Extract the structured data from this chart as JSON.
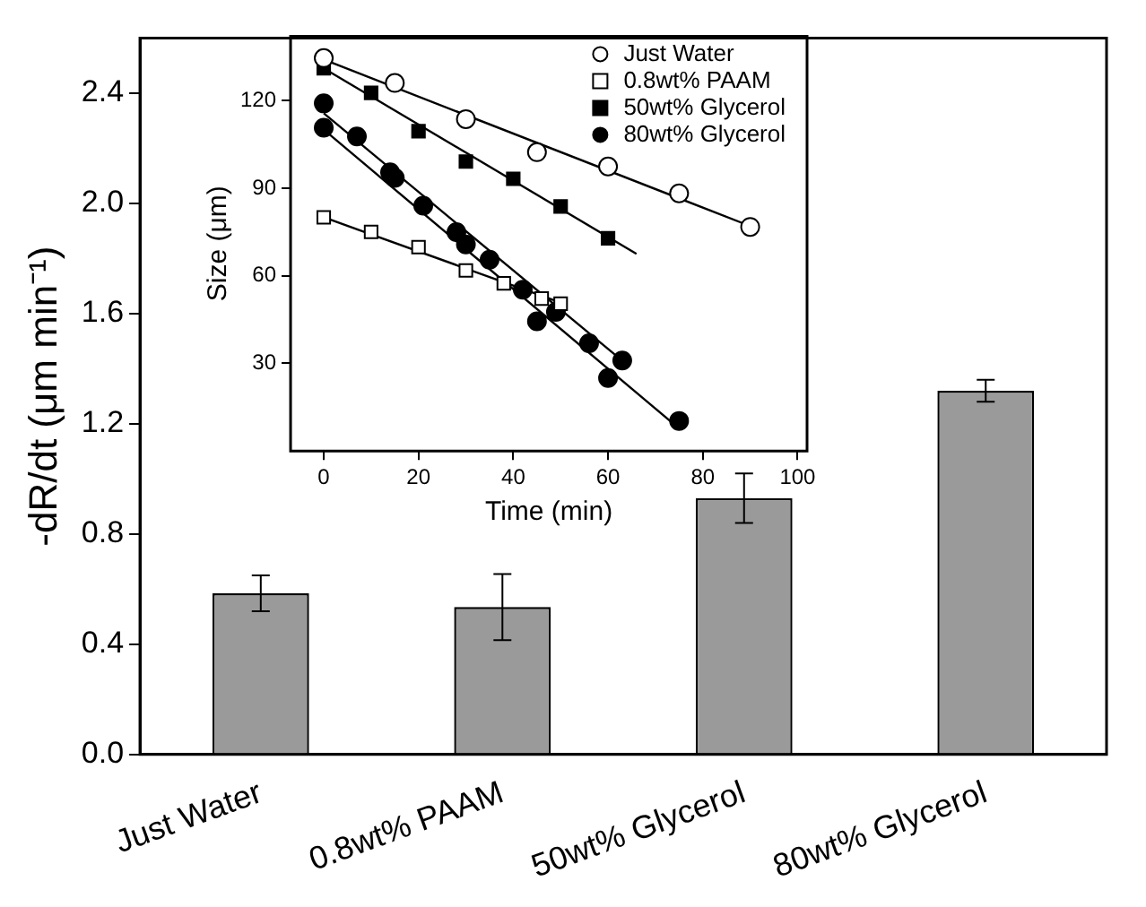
{
  "chart_data": [
    {
      "type": "bar",
      "ylabel": "-dR/dt (μm min⁻¹)",
      "categories": [
        "Just Water",
        "0.8wt% PAAM",
        "50wt% Glycerol",
        "80wt% Glycerol"
      ],
      "color": "#9a9a9a",
      "values": [
        0.585,
        0.535,
        0.93,
        1.32
      ],
      "errors": [
        0.065,
        0.12,
        0.09,
        0.04
      ],
      "ylim": [
        0,
        2.6
      ],
      "yticks": [
        {
          "value": 0,
          "label": "0.0"
        },
        0.4,
        0.8,
        1.2,
        1.6,
        {
          "value": 2,
          "label": "2.0"
        },
        2.4
      ]
    },
    {
      "type": "scatter",
      "xlabel": "Time (min)",
      "ylabel": "Size (μm)",
      "legend": "top right",
      "series": [
        {
          "name": "Just Water",
          "marker": "circle",
          "color": "#ffffff",
          "x": [
            0,
            15,
            30,
            45,
            60,
            75,
            90
          ],
          "values": [
            134.5,
            126,
            113.6,
            102.3,
            97.4,
            88.2,
            76.7
          ]
        },
        {
          "name": "0.8wt% PAAM",
          "marker": "square",
          "color": "#ffffff",
          "x": [
            0,
            10,
            20,
            30,
            38,
            46,
            50
          ],
          "values": [
            80,
            75,
            69.8,
            61.8,
            57.4,
            52.2,
            50.4
          ]
        },
        {
          "name": "50wt% Glycerol",
          "marker": "square",
          "color": "#000000",
          "x": [
            0,
            10,
            20,
            30,
            40,
            50,
            60
          ],
          "values": [
            131,
            122.6,
            109.5,
            99.1,
            93.2,
            83.7,
            72.8
          ]
        },
        {
          "name": "80wt% Glycerol",
          "marker": "circle",
          "color": "#000000",
          "x": [
            0,
            0,
            7,
            14,
            15,
            21,
            28,
            30,
            35,
            42,
            45,
            49,
            56,
            60,
            63,
            75
          ],
          "values": [
            119,
            110.7,
            107.7,
            95.4,
            93.5,
            84,
            74.9,
            70.7,
            65.5,
            55.2,
            44.4,
            47.6,
            36.9,
            25,
            31,
            10.3
          ]
        },
        {
          "type": "line",
          "marker": "none",
          "color": "#000000",
          "x": [
            0,
            90
          ],
          "values": [
            134,
            77
          ]
        },
        {
          "type": "line",
          "marker": "none",
          "color": "#000000",
          "x": [
            0,
            50
          ],
          "values": [
            80,
            50.8
          ]
        },
        {
          "type": "line",
          "marker": "none",
          "color": "#000000",
          "x": [
            0,
            66
          ],
          "values": [
            131,
            67.5
          ]
        },
        {
          "type": "line",
          "marker": "none",
          "color": "#000000",
          "x": [
            0,
            62.7
          ],
          "values": [
            115.6,
            31.3
          ]
        },
        {
          "type": "line",
          "marker": "none",
          "color": "#000000",
          "x": [
            0,
            75
          ],
          "values": [
            110,
            7.7
          ]
        }
      ],
      "xlim": [
        -7,
        102
      ],
      "ylim": [
        0,
        142
      ],
      "xticks": [
        0,
        20,
        40,
        60,
        80,
        100
      ],
      "yticks": [
        30,
        60,
        90,
        120
      ]
    }
  ]
}
